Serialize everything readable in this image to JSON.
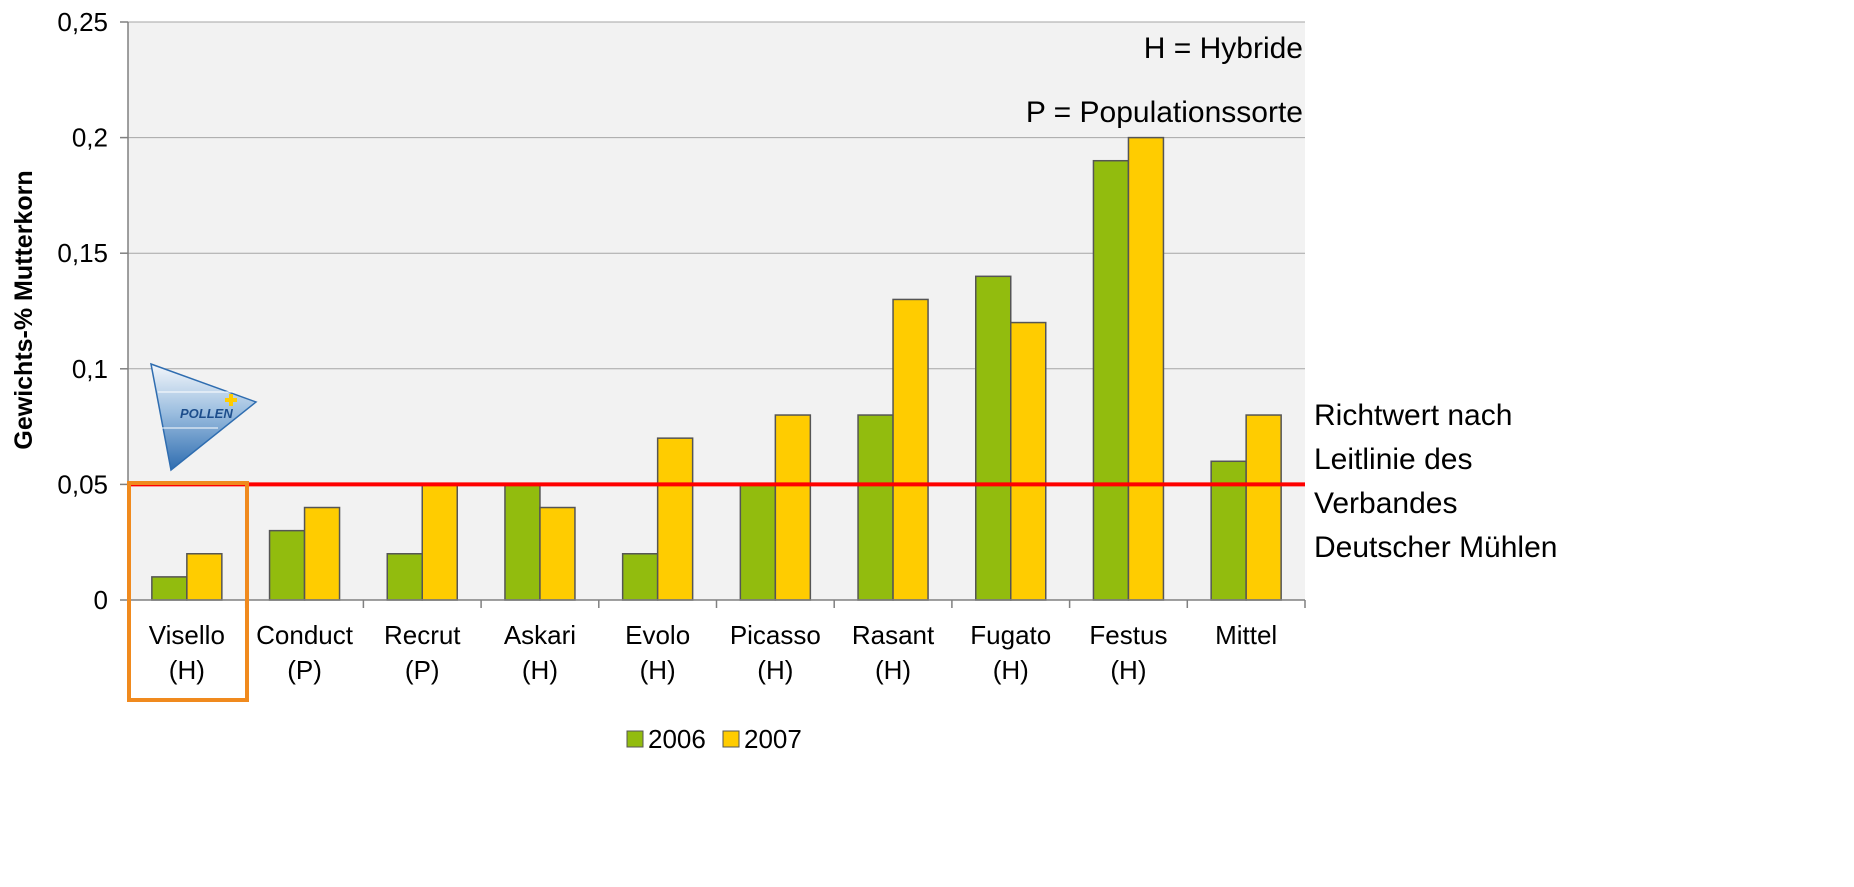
{
  "chart_data": {
    "type": "bar",
    "title": "",
    "xlabel": "",
    "ylabel": "Gewichts-% Mutterkorn",
    "ylim": [
      0,
      0.25
    ],
    "y_ticks": [
      0,
      0.05,
      0.1,
      0.15,
      0.2,
      0.25
    ],
    "y_tick_labels": [
      "0",
      "0,05",
      "0,1",
      "0,15",
      "0,2",
      "0,25"
    ],
    "grid": true,
    "legend_position": "bottom-center",
    "categories": [
      {
        "name": "Visello",
        "type": "(H)"
      },
      {
        "name": "Conduct",
        "type": "(P)"
      },
      {
        "name": "Recrut",
        "type": "(P)"
      },
      {
        "name": "Askari",
        "type": "(H)"
      },
      {
        "name": "Evolo",
        "type": "(H)"
      },
      {
        "name": "Picasso",
        "type": "(H)"
      },
      {
        "name": "Rasant",
        "type": "(H)"
      },
      {
        "name": "Fugato",
        "type": "(H)"
      },
      {
        "name": "Festus",
        "type": "(H)"
      },
      {
        "name": "Mittel",
        "type": ""
      }
    ],
    "series": [
      {
        "name": "2006",
        "color": "#92BC0E",
        "values": [
          0.01,
          0.03,
          0.02,
          0.05,
          0.02,
          0.05,
          0.08,
          0.14,
          0.19,
          0.06
        ]
      },
      {
        "name": "2007",
        "color": "#FFCC00",
        "values": [
          0.02,
          0.04,
          0.05,
          0.04,
          0.07,
          0.08,
          0.13,
          0.12,
          0.2,
          0.08
        ]
      }
    ],
    "reference_line": {
      "value": 0.05,
      "color": "#FF0000",
      "label_lines": [
        "Richtwert nach",
        "Leitlinie des",
        "Verbandes",
        "Deutscher Mühlen"
      ]
    },
    "annotations": [
      "H = Hybride",
      "P = Populationssorte"
    ],
    "highlight": {
      "category": "Visello",
      "color": "#F08A1E"
    },
    "logo": {
      "text": "POLLEN",
      "accent": "#FFCC00"
    },
    "colors": {
      "plot_background": "#F2F2F2",
      "grid": "#A6A6A6",
      "bar_outline": "#555555"
    }
  }
}
